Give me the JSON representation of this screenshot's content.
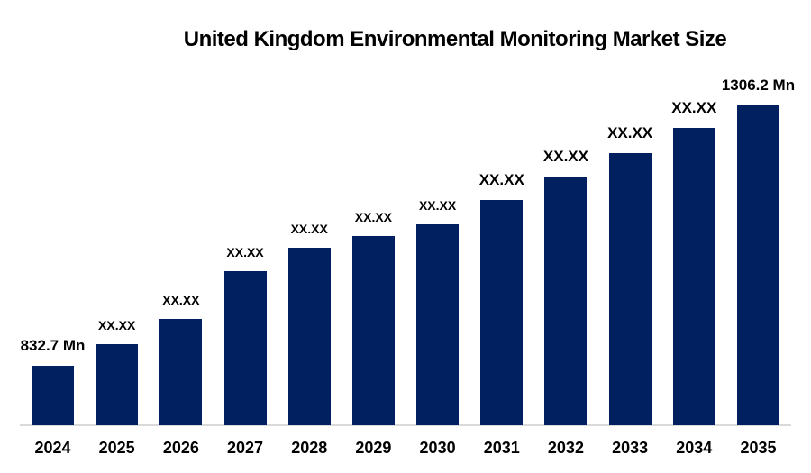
{
  "chart_data": {
    "type": "bar",
    "title": "United Kingdom Environmental Monitoring Market Size",
    "categories": [
      "2024",
      "2025",
      "2026",
      "2027",
      "2028",
      "2029",
      "2030",
      "2031",
      "2032",
      "2033",
      "2034",
      "2035"
    ],
    "bar_labels": [
      "832.7 Mn",
      "XX.XX",
      "XX.XX",
      "XX.XX",
      "XX.XX",
      "XX.XX",
      "XX.XX",
      "XX.XX",
      "XX.XX",
      "XX.XX",
      "XX.XX",
      "1306.2 Mn"
    ],
    "bar_label_sizes": [
      "lg",
      "sm",
      "sm",
      "sm",
      "sm",
      "sm",
      "sm",
      "lg",
      "lg",
      "lg",
      "lg",
      "lg"
    ],
    "values_labeled": {
      "2024": 832.7,
      "2035": 1306.2
    },
    "values_estimated": [
      832.7,
      872,
      918,
      1005,
      1047,
      1069,
      1090,
      1134,
      1177,
      1219,
      1265,
      1306.2
    ],
    "unit": "Mn",
    "ylim": [
      724.6,
      1306.2
    ],
    "y_axis_visible": false,
    "grid": false,
    "legend": false,
    "colors": {
      "bar": "#002060",
      "axis_line": "#d9d9d9",
      "text": "#000000"
    }
  }
}
